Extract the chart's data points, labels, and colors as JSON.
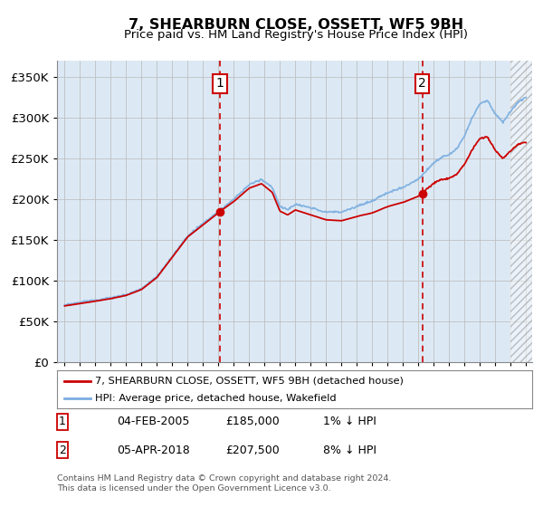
{
  "title": "7, SHEARBURN CLOSE, OSSETT, WF5 9BH",
  "subtitle": "Price paid vs. HM Land Registry's House Price Index (HPI)",
  "legend_line1": "7, SHEARBURN CLOSE, OSSETT, WF5 9BH (detached house)",
  "legend_line2": "HPI: Average price, detached house, Wakefield",
  "annotation1_date": "04-FEB-2005",
  "annotation1_price": "£185,000",
  "annotation1_hpi": "1% ↓ HPI",
  "annotation2_date": "05-APR-2018",
  "annotation2_price": "£207,500",
  "annotation2_hpi": "8% ↓ HPI",
  "footer1": "Contains HM Land Registry data © Crown copyright and database right 2024.",
  "footer2": "This data is licensed under the Open Government Licence v3.0.",
  "red_line_color": "#cc0000",
  "blue_line_color": "#7aade0",
  "background_color": "#dce9f5",
  "grid_color": "#c0c0c0",
  "vline_color": "#cc0000",
  "box_color": "#cc0000",
  "ylim": [
    0,
    370000
  ],
  "yticks": [
    0,
    50000,
    100000,
    150000,
    200000,
    250000,
    300000,
    350000
  ],
  "ytick_labels": [
    "£0",
    "£50K",
    "£100K",
    "£150K",
    "£200K",
    "£250K",
    "£300K",
    "£350K"
  ],
  "sale1_year": 2005.08,
  "sale1_value": 185000,
  "sale2_year": 2018.25,
  "sale2_value": 207500,
  "future_start_year": 2024.0,
  "xlim_left": 1994.5,
  "xlim_right": 2025.4
}
